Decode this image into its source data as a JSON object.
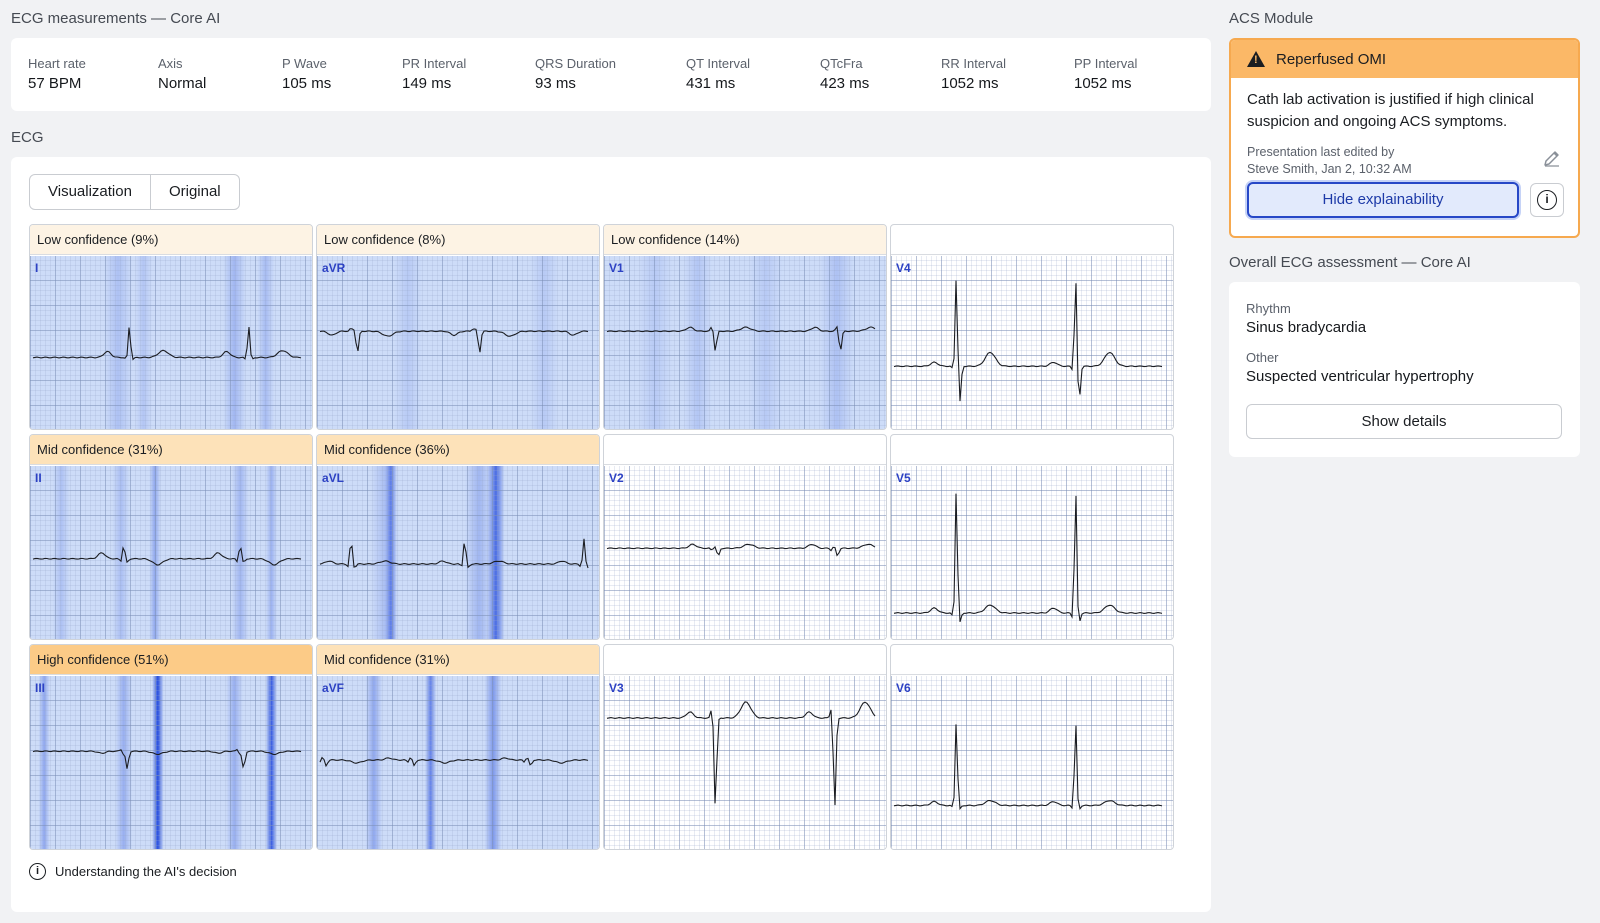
{
  "measurements": {
    "title": "ECG measurements — Core AI",
    "items": [
      {
        "label": "Heart rate",
        "value": "57 BPM"
      },
      {
        "label": "Axis",
        "value": "Normal"
      },
      {
        "label": "P Wave",
        "value": "105 ms"
      },
      {
        "label": "PR Interval",
        "value": "149 ms"
      },
      {
        "label": "QRS Duration",
        "value": "93 ms"
      },
      {
        "label": "QT Interval",
        "value": "431 ms"
      },
      {
        "label": "QTcFra",
        "value": "423 ms"
      },
      {
        "label": "RR Interval",
        "value": "1052 ms"
      },
      {
        "label": "PP Interval",
        "value": "1052 ms"
      }
    ]
  },
  "ecg": {
    "title": "ECG",
    "tabs": [
      "Visualization",
      "Original"
    ],
    "understand_label": "Understanding the AI's decision",
    "leads": [
      {
        "name": "I",
        "confidence": "Low confidence (9%)",
        "level": 0.09
      },
      {
        "name": "aVR",
        "confidence": "Low confidence (8%)",
        "level": 0.08
      },
      {
        "name": "V1",
        "confidence": "Low confidence (14%)",
        "level": 0.14
      },
      {
        "name": "V4",
        "confidence": "",
        "level": 0
      },
      {
        "name": "II",
        "confidence": "Mid confidence (31%)",
        "level": 0.31
      },
      {
        "name": "aVL",
        "confidence": "Mid confidence (36%)",
        "level": 0.36
      },
      {
        "name": "V2",
        "confidence": "",
        "level": 0
      },
      {
        "name": "V5",
        "confidence": "",
        "level": 0
      },
      {
        "name": "III",
        "confidence": "High confidence (51%)",
        "level": 0.51
      },
      {
        "name": "aVF",
        "confidence": "Mid confidence (31%)",
        "level": 0.31
      },
      {
        "name": "V3",
        "confidence": "",
        "level": 0
      },
      {
        "name": "V6",
        "confidence": "",
        "level": 0
      }
    ]
  },
  "acs": {
    "title": "ACS Module",
    "alert": "Reperfused OMI",
    "message": "Cath lab activation is justified if high clinical suspicion and ongoing ACS symptoms.",
    "edited_line1": "Presentation last edited by",
    "edited_line2": "Steve Smith, Jan 2, 10:32 AM",
    "hide_button": "Hide explainability",
    "colors": {
      "alert_bg": "#fbb867",
      "border": "#f6a94f",
      "accent": "#2748c7"
    }
  },
  "assessment": {
    "title": "Overall ECG assessment — Core AI",
    "rhythm_label": "Rhythm",
    "rhythm_value": "Sinus bradycardia",
    "other_label": "Other",
    "other_value": "Suspected ventricular hypertrophy",
    "details_button": "Show details"
  }
}
